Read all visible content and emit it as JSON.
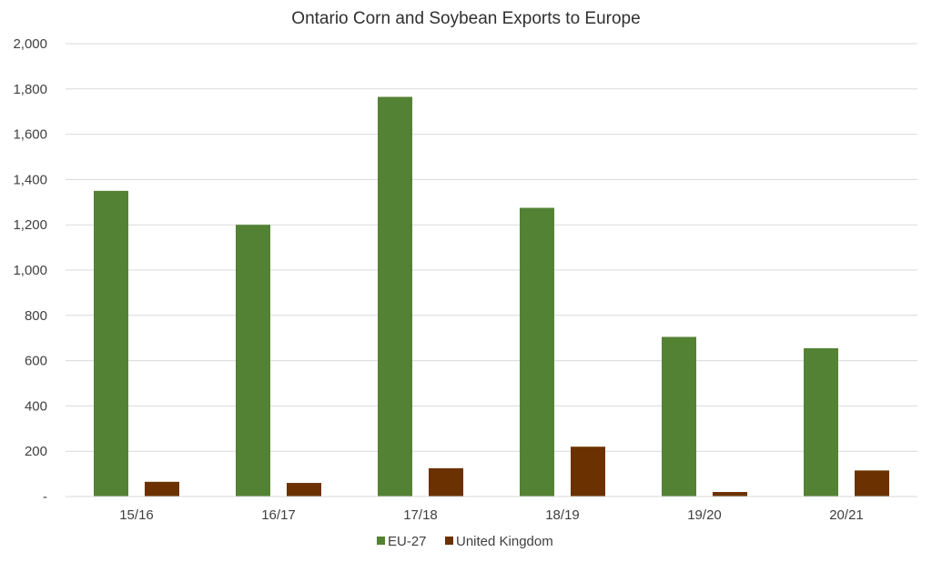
{
  "chart_data": {
    "type": "bar",
    "title": "Ontario Corn and Soybean Exports to Europe",
    "xlabel": "",
    "ylabel": "",
    "categories": [
      "15/16",
      "16/17",
      "17/18",
      "18/19",
      "19/20",
      "20/21"
    ],
    "series": [
      {
        "name": "EU-27",
        "color": "#548235",
        "values": [
          1350,
          1200,
          1765,
          1275,
          705,
          655
        ]
      },
      {
        "name": "United Kingdom",
        "color": "#6b3100",
        "values": [
          65,
          60,
          125,
          220,
          20,
          115
        ]
      }
    ],
    "ylim": [
      0,
      2000
    ],
    "yticks": [
      0,
      200,
      400,
      600,
      800,
      1000,
      1200,
      1400,
      1600,
      1800,
      2000
    ],
    "ytick_labels": [
      "-",
      "200",
      "400",
      "600",
      "800",
      "1,000",
      "1,200",
      "1,400",
      "1,600",
      "1,800",
      "2,000"
    ],
    "grid": true,
    "legend_position": "bottom"
  }
}
